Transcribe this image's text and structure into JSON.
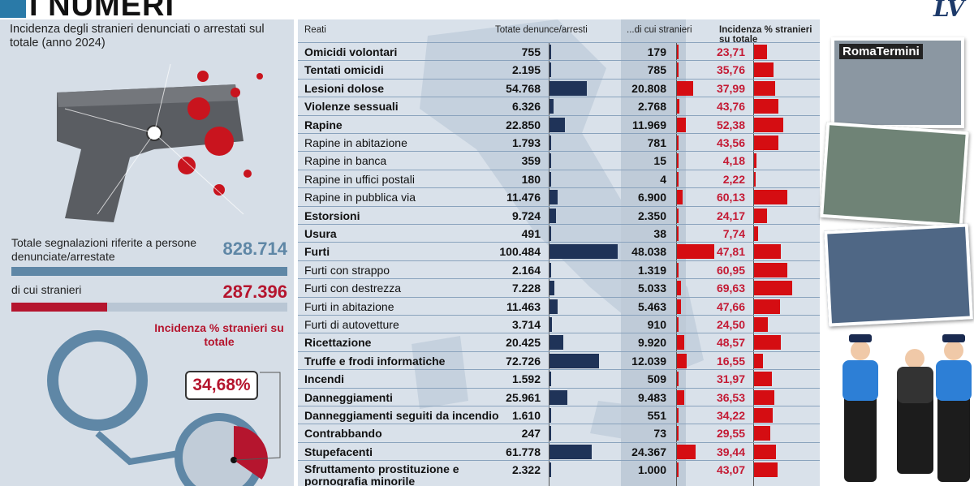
{
  "header": {
    "title": "I NUMERI",
    "logo": "LV"
  },
  "left_panel": {
    "subtitle": "Incidenza degli stranieri denunciati o arrestati sul totale (anno 2024)",
    "total_label": "Totale segnalazioni riferite a persone denunciate/arrestate",
    "total_value": "828.714",
    "foreign_label": "di cui stranieri",
    "foreign_value": "287.396",
    "incidence_title": "Incidenza % stranieri su totale",
    "incidence_value": "34,68%",
    "incidence_fraction": 0.3468,
    "colors": {
      "total": "#5f87a6",
      "foreign": "#b5152e"
    }
  },
  "photos": {
    "sign_text": "RomaTermini"
  },
  "chart_data": {
    "type": "table",
    "headers": [
      "Reati",
      "Totate denunce/arresti",
      "...di cui stranieri",
      "Incidenza % stranieri su totale"
    ],
    "colors": {
      "total_bar": "#1f3358",
      "foreign_bar": "#d50d12",
      "pct_bar": "#d50d12",
      "pct_text": "#c41a34"
    },
    "rows": [
      {
        "name": "Omicidi  volontari",
        "bold": true,
        "total": "755",
        "foreign": "179",
        "pct": "23,71"
      },
      {
        "name": "Tentati omicidi",
        "bold": true,
        "total": "2.195",
        "foreign": "785",
        "pct": "35,76"
      },
      {
        "name": "Lesioni dolose",
        "bold": true,
        "total": "54.768",
        "foreign": "20.808",
        "pct": "37,99"
      },
      {
        "name": "Violenze sessuali",
        "bold": true,
        "total": "6.326",
        "foreign": "2.768",
        "pct": "43,76"
      },
      {
        "name": "Rapine",
        "bold": true,
        "total": "22.850",
        "foreign": "11.969",
        "pct": "52,38"
      },
      {
        "name": "Rapine in abitazione",
        "bold": false,
        "total": "1.793",
        "foreign": "781",
        "pct": "43,56"
      },
      {
        "name": "Rapine in banca",
        "bold": false,
        "total": "359",
        "foreign": "15",
        "pct": "4,18"
      },
      {
        "name": "Rapine in uffici postali",
        "bold": false,
        "total": "180",
        "foreign": "4",
        "pct": "2,22"
      },
      {
        "name": "Rapine in pubblica via",
        "bold": false,
        "total": "11.476",
        "foreign": "6.900",
        "pct": "60,13"
      },
      {
        "name": "Estorsioni",
        "bold": true,
        "total": "9.724",
        "foreign": "2.350",
        "pct": "24,17"
      },
      {
        "name": "Usura",
        "bold": true,
        "total": "491",
        "foreign": "38",
        "pct": "7,74"
      },
      {
        "name": "Furti",
        "bold": true,
        "total": "100.484",
        "foreign": "48.038",
        "pct": "47,81"
      },
      {
        "name": "Furti con strappo",
        "bold": false,
        "total": "2.164",
        "foreign": "1.319",
        "pct": "60,95"
      },
      {
        "name": "Furti con destrezza",
        "bold": false,
        "total": "7.228",
        "foreign": "5.033",
        "pct": "69,63"
      },
      {
        "name": "Furti in abitazione",
        "bold": false,
        "total": "11.463",
        "foreign": "5.463",
        "pct": "47,66"
      },
      {
        "name": "Furti di autovetture",
        "bold": false,
        "total": "3.714",
        "foreign": "910",
        "pct": "24,50"
      },
      {
        "name": "Ricettazione",
        "bold": true,
        "total": "20.425",
        "foreign": "9.920",
        "pct": "48,57"
      },
      {
        "name": "Truffe e frodi informatiche",
        "bold": true,
        "total": "72.726",
        "foreign": "12.039",
        "pct": "16,55"
      },
      {
        "name": "Incendi",
        "bold": true,
        "total": "1.592",
        "foreign": "509",
        "pct": "31,97"
      },
      {
        "name": "Danneggiamenti",
        "bold": true,
        "total": "25.961",
        "foreign": "9.483",
        "pct": "36,53"
      },
      {
        "name": "Danneggiamenti seguiti da incendio",
        "bold": true,
        "total": "1.610",
        "foreign": "551",
        "pct": "34,22"
      },
      {
        "name": "Contrabbando",
        "bold": true,
        "total": "247",
        "foreign": "73",
        "pct": "29,55"
      },
      {
        "name": "Stupefacenti",
        "bold": true,
        "total": "61.778",
        "foreign": "24.367",
        "pct": "39,44"
      },
      {
        "name": "Sfruttamento prostituzione e pornografia minorile",
        "bold": true,
        "total": "2.322",
        "foreign": "1.000",
        "pct": "43,07"
      }
    ]
  }
}
